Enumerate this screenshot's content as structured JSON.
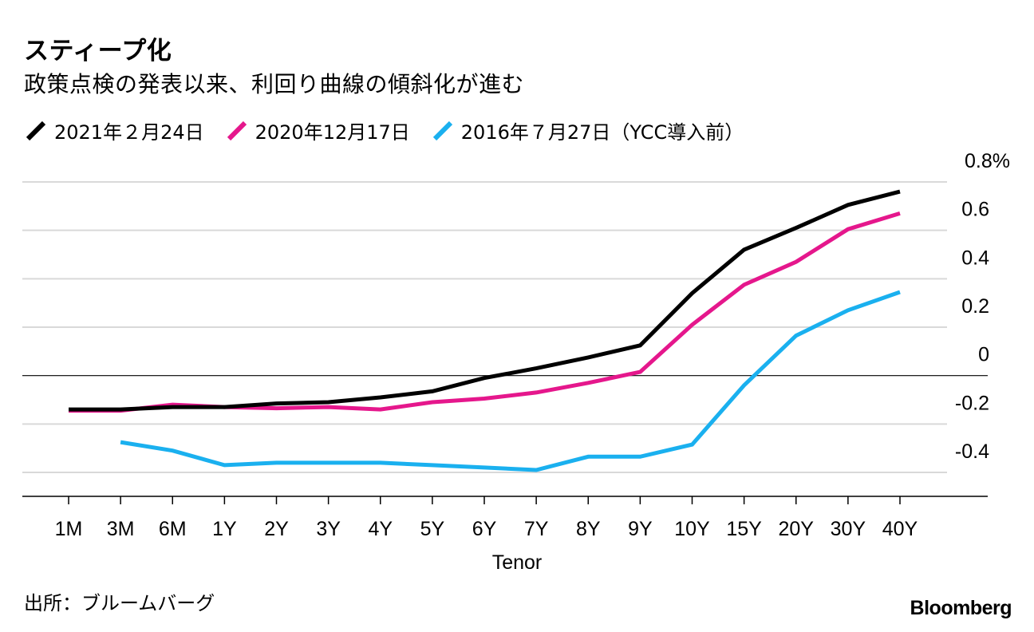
{
  "chart_data": {
    "type": "line",
    "title": "スティープ化",
    "subtitle": "政策点検の発表以来、利回り曲線の傾斜化が進む",
    "xlabel": "Tenor",
    "ylabel": "",
    "categories": [
      "1M",
      "3M",
      "6M",
      "1Y",
      "2Y",
      "3Y",
      "4Y",
      "5Y",
      "6Y",
      "7Y",
      "8Y",
      "9Y",
      "10Y",
      "15Y",
      "20Y",
      "30Y",
      "40Y"
    ],
    "ylim": [
      -0.5,
      0.8
    ],
    "yticks": [
      0.8,
      0.6,
      0.4,
      0.2,
      0,
      -0.2,
      -0.4
    ],
    "ytick_labels": [
      "0.8%",
      "0.6",
      "0.4",
      "0.2",
      "0",
      "-0.2",
      "-0.4"
    ],
    "legend_position": "top-left",
    "grid": true,
    "series": [
      {
        "name": "2021年２月24日",
        "color": "#000000",
        "values": [
          -0.14,
          -0.14,
          -0.13,
          -0.13,
          -0.115,
          -0.11,
          -0.09,
          -0.065,
          -0.01,
          0.03,
          0.075,
          0.125,
          0.34,
          0.52,
          0.61,
          0.705,
          0.76
        ]
      },
      {
        "name": "2020年12月17日",
        "color": "#e5178c",
        "values": [
          -0.145,
          -0.145,
          -0.12,
          -0.13,
          -0.135,
          -0.13,
          -0.14,
          -0.11,
          -0.095,
          -0.07,
          -0.03,
          0.015,
          0.21,
          0.375,
          0.47,
          0.605,
          0.67
        ]
      },
      {
        "name": "2016年７月27日（YCC導入前）",
        "color": "#1ab0ef",
        "values": [
          null,
          -0.275,
          -0.31,
          -0.37,
          -0.36,
          -0.36,
          -0.36,
          -0.37,
          -0.38,
          -0.39,
          -0.335,
          -0.335,
          -0.285,
          -0.04,
          0.165,
          0.27,
          0.345
        ]
      }
    ]
  },
  "footer": {
    "source": "出所：ブルームバーグ",
    "brand": "Bloomberg"
  }
}
